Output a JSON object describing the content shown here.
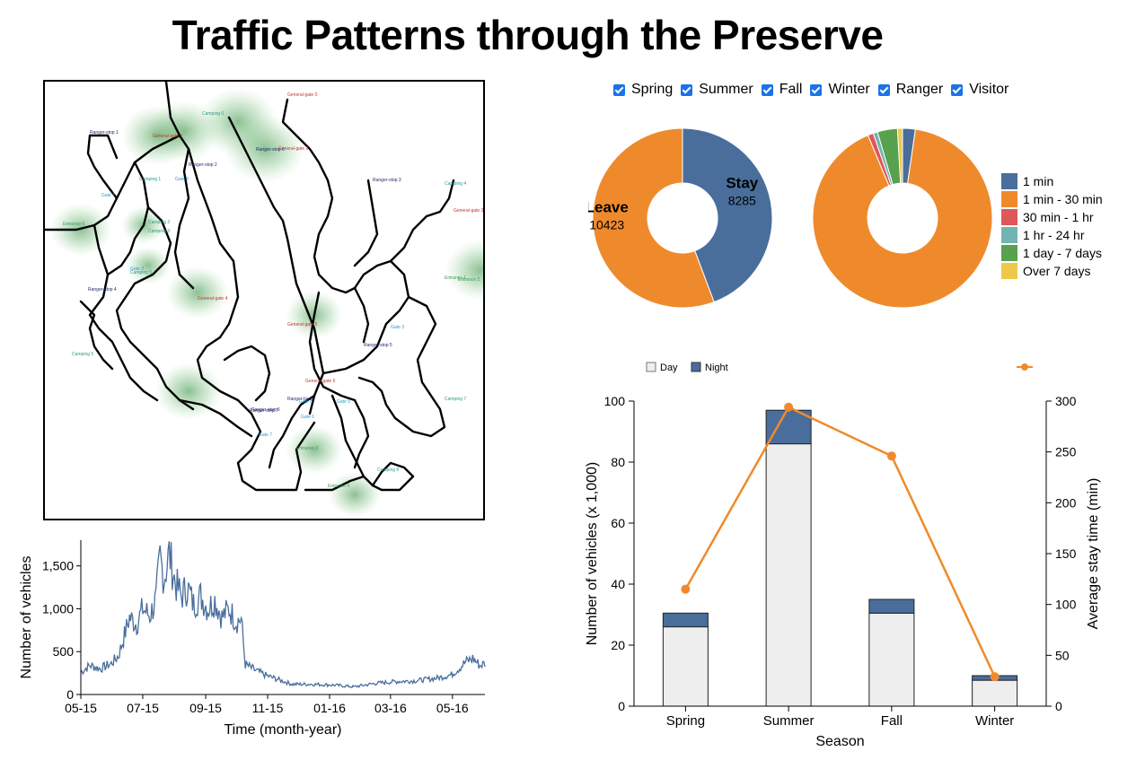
{
  "title": "Traffic Patterns through the Preserve",
  "filters": [
    {
      "label": "Spring",
      "checked": true
    },
    {
      "label": "Summer",
      "checked": true
    },
    {
      "label": "Fall",
      "checked": true
    },
    {
      "label": "Winter",
      "checked": true
    },
    {
      "label": "Ranger",
      "checked": true
    },
    {
      "label": "Visitor",
      "checked": true
    }
  ],
  "colors": {
    "blue": "#4a6e9c",
    "orange": "#ef8a2c",
    "red": "#e05759",
    "teal": "#72b5b0",
    "green": "#58a14e",
    "yellow": "#edc949",
    "light_gray": "#eeeeee",
    "map_glow": "#2e8b3a"
  },
  "map": {
    "labels": [
      {
        "text": "General-gate 0",
        "type": "general"
      },
      {
        "text": "Ranger-stop 1",
        "type": "ranger"
      },
      {
        "text": "General-gate 1",
        "type": "general"
      },
      {
        "text": "General-gate 2",
        "type": "general"
      },
      {
        "text": "Camping 0",
        "type": "camping"
      },
      {
        "text": "Gate 0",
        "type": "gate"
      },
      {
        "text": "Ranger-stop 2",
        "type": "ranger"
      },
      {
        "text": "Ranger-stop 0",
        "type": "ranger"
      },
      {
        "text": "Camping 1",
        "type": "camping"
      },
      {
        "text": "Gate 1",
        "type": "gate"
      },
      {
        "text": "Ranger-stop 3",
        "type": "ranger"
      },
      {
        "text": "Camping 4",
        "type": "camping"
      },
      {
        "text": "General-gate 3",
        "type": "general"
      },
      {
        "text": "Entrance 0",
        "type": "entrance"
      },
      {
        "text": "Camping 2",
        "type": "camping"
      },
      {
        "text": "Camping 3",
        "type": "camping"
      },
      {
        "text": "Gate 2",
        "type": "gate"
      },
      {
        "text": "Camping 5",
        "type": "camping"
      },
      {
        "text": "Entrance 1",
        "type": "entrance"
      },
      {
        "text": "Ranger-stop 4",
        "type": "ranger"
      },
      {
        "text": "General-gate 4",
        "type": "general"
      },
      {
        "text": "General-gate 5",
        "type": "general"
      },
      {
        "text": "Gate 3",
        "type": "gate"
      },
      {
        "text": "Ranger-stop 5",
        "type": "ranger"
      },
      {
        "text": "Camping 5",
        "type": "camping"
      },
      {
        "text": "Ranger-base",
        "type": "ranger"
      },
      {
        "text": "Gate 8",
        "type": "gate"
      },
      {
        "text": "General-gate 6",
        "type": "general"
      },
      {
        "text": "Ranger-stop 6",
        "type": "ranger"
      },
      {
        "text": "Gate 5",
        "type": "gate"
      },
      {
        "text": "Camping 7",
        "type": "camping"
      },
      {
        "text": "Ranger-stop 7",
        "type": "ranger"
      },
      {
        "text": "Gate 6",
        "type": "gate"
      },
      {
        "text": "Gate 7",
        "type": "gate"
      },
      {
        "text": "Entrance 3",
        "type": "entrance"
      },
      {
        "text": "Camping 8",
        "type": "camping"
      },
      {
        "text": "Entrance 4",
        "type": "entrance"
      },
      {
        "text": "Entrance 2",
        "type": "entrance"
      }
    ]
  },
  "chart_data": [
    {
      "id": "stay-leave-donut",
      "type": "pie",
      "slices": [
        {
          "label": "Stay",
          "value": 8285,
          "color": "#4a6e9c"
        },
        {
          "label": "Leave",
          "value": 10423,
          "color": "#ef8a2c"
        }
      ]
    },
    {
      "id": "stay-duration-donut",
      "type": "pie",
      "slices": [
        {
          "label": "1 min",
          "value": 2.3,
          "color": "#4a6e9c"
        },
        {
          "label": "1 min - 30 min",
          "value": 91.4,
          "color": "#ef8a2c"
        },
        {
          "label": "30 min - 1 hr",
          "value": 1.0,
          "color": "#e05759"
        },
        {
          "label": "1 hr - 24 hr",
          "value": 0.8,
          "color": "#72b5b0"
        },
        {
          "label": "1 day - 7 days",
          "value": 3.6,
          "color": "#58a14e"
        },
        {
          "label": "Over 7 days",
          "value": 0.9,
          "color": "#edc949"
        }
      ],
      "legend_placement": "right"
    },
    {
      "id": "vehicles-over-time",
      "type": "line",
      "xlabel": "Time (month-year)",
      "ylabel": "Number of vehicles",
      "x_ticks": [
        "05-15",
        "07-15",
        "09-15",
        "11-15",
        "01-16",
        "03-16",
        "05-16"
      ],
      "y_ticks": [
        "0",
        "500",
        "1,000",
        "1,500"
      ],
      "ylim": [
        0,
        1800
      ],
      "x_range": [
        "2015-05-01",
        "2016-06-02"
      ],
      "series_points": [
        [
          "2015-05-01",
          260
        ],
        [
          "2015-05-10",
          340
        ],
        [
          "2015-05-20",
          300
        ],
        [
          "2015-05-31",
          360
        ],
        [
          "2015-06-07",
          450
        ],
        [
          "2015-06-12",
          650
        ],
        [
          "2015-06-18",
          900
        ],
        [
          "2015-06-25",
          820
        ],
        [
          "2015-07-01",
          1000
        ],
        [
          "2015-07-08",
          920
        ],
        [
          "2015-07-14",
          1100
        ],
        [
          "2015-07-18",
          1600
        ],
        [
          "2015-07-22",
          1350
        ],
        [
          "2015-07-27",
          1650
        ],
        [
          "2015-08-02",
          1300
        ],
        [
          "2015-08-08",
          1150
        ],
        [
          "2015-08-14",
          1250
        ],
        [
          "2015-08-20",
          1050
        ],
        [
          "2015-08-27",
          1150
        ],
        [
          "2015-09-03",
          1000
        ],
        [
          "2015-09-10",
          1100
        ],
        [
          "2015-09-17",
          900
        ],
        [
          "2015-09-24",
          1000
        ],
        [
          "2015-10-01",
          850
        ],
        [
          "2015-10-06",
          880
        ],
        [
          "2015-10-10",
          350
        ],
        [
          "2015-10-20",
          280
        ],
        [
          "2015-10-31",
          220
        ],
        [
          "2015-11-10",
          180
        ],
        [
          "2015-11-25",
          120
        ],
        [
          "2015-12-15",
          120
        ],
        [
          "2016-01-05",
          110
        ],
        [
          "2016-01-25",
          90
        ],
        [
          "2016-02-15",
          130
        ],
        [
          "2016-03-05",
          150
        ],
        [
          "2016-03-25",
          160
        ],
        [
          "2016-04-15",
          190
        ],
        [
          "2016-04-30",
          230
        ],
        [
          "2016-05-07",
          300
        ],
        [
          "2016-05-14",
          380
        ],
        [
          "2016-05-21",
          420
        ],
        [
          "2016-05-28",
          340
        ],
        [
          "2016-06-02",
          360
        ]
      ]
    },
    {
      "id": "season-bar-line",
      "type": "bar",
      "categories": [
        "Spring",
        "Summer",
        "Fall",
        "Winter"
      ],
      "series": [
        {
          "name": "Day",
          "values": [
            26,
            86,
            30.5,
            8.5
          ],
          "color": "#eeeeee"
        },
        {
          "name": "Night",
          "values": [
            4.5,
            11,
            4.5,
            1.5
          ],
          "color": "#4a6e9c"
        }
      ],
      "line_series": {
        "values": [
          115,
          294,
          246,
          29
        ],
        "color": "#ef8a2c"
      },
      "xlabel": "Season",
      "ylabel": "Number of vehicles (x 1,000)",
      "ylabel_right": "Average stay time (min)",
      "ylim": [
        0,
        100
      ],
      "ylim_right": [
        0,
        300
      ],
      "y_ticks": [
        "0",
        "20",
        "40",
        "60",
        "80",
        "100"
      ],
      "y_ticks_right": [
        "0",
        "50",
        "100",
        "150",
        "200",
        "250",
        "300"
      ],
      "legend_placement": "top"
    }
  ]
}
